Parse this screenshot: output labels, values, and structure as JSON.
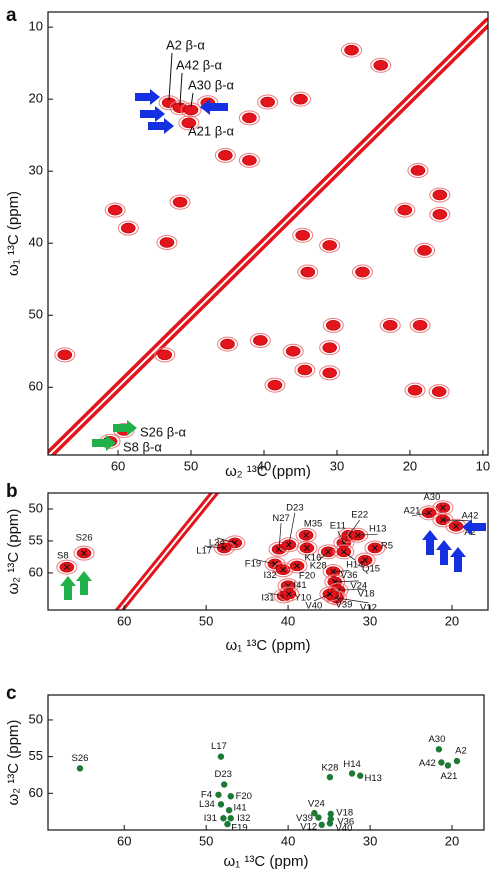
{
  "chart_data": [
    {
      "type": "contour",
      "panel_label": "a",
      "x_label": "ω₂ ¹³C (ppm)",
      "y_label": "ω₁ ¹³C (ppm)",
      "xlim": [
        69.6,
        9.3
      ],
      "ylim": [
        69.4,
        7.9
      ],
      "xticks": [
        60,
        50,
        40,
        30,
        20,
        10
      ],
      "yticks": [
        10,
        20,
        30,
        40,
        50,
        60
      ],
      "color": "#e3141c",
      "annotations": [
        "A2 β-α",
        "A42 β-α",
        "A30 β-α",
        "A21 β-α",
        "S26 β-α",
        "S8 β-α"
      ],
      "peaks": {
        "x": [
          53,
          51.5,
          50,
          50.3,
          28,
          24,
          47.7,
          39.5,
          42,
          35,
          45.3,
          42,
          60.4,
          58.6,
          51.5,
          53.3,
          34.7,
          31,
          34,
          15.9,
          15.9,
          18.9,
          20.7,
          18,
          22.7,
          18.6,
          30.5,
          40.5,
          36,
          31,
          34.4,
          31,
          38.5,
          19.3,
          16,
          67.3,
          53.6,
          59.2,
          61.1,
          45,
          26.5
        ],
        "y": [
          20.5,
          21.2,
          21.5,
          23.3,
          13.2,
          15.3,
          20.5,
          20.4,
          22.6,
          20,
          27.8,
          28.5,
          35.4,
          37.9,
          34.3,
          39.9,
          38.9,
          40.3,
          44,
          33.3,
          36,
          29.9,
          35.4,
          41,
          51.4,
          51.4,
          51.4,
          53.5,
          55,
          54.5,
          57.6,
          58,
          59.7,
          60.4,
          60.6,
          55.5,
          55.5,
          66,
          67.5,
          54,
          44
        ]
      }
    },
    {
      "type": "contour",
      "panel_label": "b",
      "x_label": "ω₁ ¹³C (ppm)",
      "y_label": "ω₂ ¹³C (ppm)",
      "xlim": [
        69.3,
        15.6
      ],
      "ylim": [
        65.8,
        47.5
      ],
      "xticks": [
        60,
        50,
        40,
        30,
        20
      ],
      "yticks": [
        50,
        55,
        60
      ],
      "color": "#e3141c",
      "peaks": {
        "labels": [
          "S8",
          "S26",
          "L34",
          "L17",
          "N27",
          "D23",
          "M35",
          "F19",
          "I32",
          "F20",
          "K16",
          "E11",
          "E22",
          "H13",
          "K28",
          "H14",
          "R5",
          "Q15",
          "V36",
          "V24",
          "V18",
          "V39",
          "V12",
          "V40",
          "I41",
          "I31",
          "Y10",
          "A30",
          "A21",
          "A42",
          "A2"
        ],
        "x": [
          67,
          64.9,
          46.5,
          47.8,
          41.1,
          39.9,
          37.8,
          41.6,
          40.6,
          38.9,
          37.7,
          33.2,
          32.6,
          31.5,
          35.1,
          33.2,
          29.4,
          30.6,
          34.5,
          34.3,
          33.9,
          34.4,
          34.1,
          34.9,
          40,
          40.5,
          39.9,
          21.1,
          22.8,
          21.1,
          19.5
        ],
        "y": [
          59.1,
          56.9,
          55.3,
          56.1,
          56.3,
          55.6,
          54.1,
          58.6,
          59.5,
          58.9,
          56.1,
          55.3,
          54.1,
          54.1,
          56.7,
          56.7,
          56.1,
          58,
          59.8,
          61.4,
          62.7,
          63.75,
          63.9,
          63.3,
          62,
          63.6,
          63.3,
          49.8,
          50.6,
          51.7,
          52.7
        ]
      }
    },
    {
      "type": "scatter",
      "panel_label": "c",
      "x_label": "ω₁ ¹³C (ppm)",
      "y_label": "ω₂ ¹³C (ppm)",
      "xlim": [
        69.3,
        16.1
      ],
      "ylim": [
        65,
        46.6
      ],
      "xticks": [
        60,
        50,
        40,
        30,
        20
      ],
      "yticks": [
        50,
        55,
        60
      ],
      "color": "#1d7a35",
      "point_labels": [
        "S26",
        "L17",
        "D23",
        "F4",
        "F20",
        "L34",
        "I41",
        "I31",
        "I32",
        "F19",
        "V24",
        "V39",
        "V18",
        "V36",
        "V12",
        "V40",
        "K28",
        "H14",
        "H13",
        "A30",
        "A2",
        "A42",
        "A21"
      ],
      "x": [
        65.4,
        48.2,
        47.8,
        48.5,
        47,
        48.2,
        47.2,
        47.9,
        47,
        47.4,
        36.8,
        36.3,
        34.8,
        34.8,
        35.9,
        34.9,
        34.9,
        32.2,
        31.2,
        21.6,
        19.4,
        21.3,
        20.5
      ],
      "values": [
        56.6,
        55,
        58.8,
        60.2,
        60.4,
        61.5,
        62.3,
        63.4,
        63.4,
        64.2,
        62.7,
        63.3,
        62.8,
        63.5,
        64.3,
        64.1,
        57.8,
        57.3,
        57.6,
        54,
        55.6,
        55.8,
        56.2
      ]
    }
  ]
}
